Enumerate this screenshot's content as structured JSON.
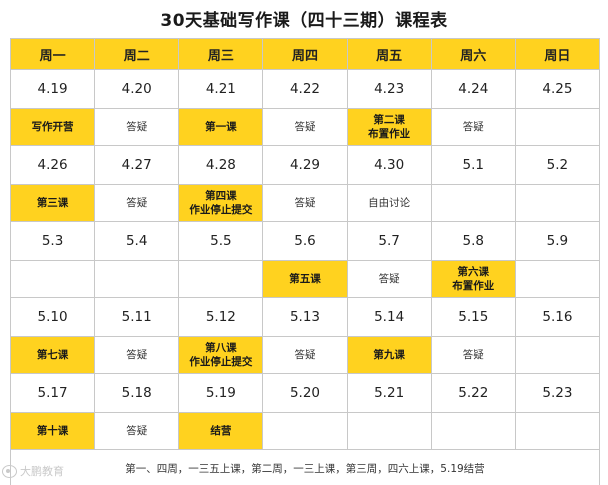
{
  "title": "30天基础写作课（四十三期）课程表",
  "weekdays": [
    "周一",
    "周二",
    "周三",
    "周四",
    "周五",
    "周六",
    "周日"
  ],
  "weeks": [
    {
      "dates": [
        "4.19",
        "4.20",
        "4.21",
        "4.22",
        "4.23",
        "4.24",
        "4.25"
      ],
      "activities": [
        {
          "text": "写作开营",
          "highlight": true
        },
        {
          "text": "答疑",
          "highlight": false
        },
        {
          "text": "第一课",
          "highlight": true
        },
        {
          "text": "答疑",
          "highlight": false
        },
        {
          "text": "第二课\n布置作业",
          "highlight": true
        },
        {
          "text": "答疑",
          "highlight": false
        },
        {
          "text": "",
          "highlight": false
        }
      ]
    },
    {
      "dates": [
        "4.26",
        "4.27",
        "4.28",
        "4.29",
        "4.30",
        "5.1",
        "5.2"
      ],
      "activities": [
        {
          "text": "第三课",
          "highlight": true
        },
        {
          "text": "答疑",
          "highlight": false
        },
        {
          "text": "第四课\n作业停止提交",
          "highlight": true
        },
        {
          "text": "答疑",
          "highlight": false
        },
        {
          "text": "自由讨论",
          "highlight": false
        },
        {
          "text": "",
          "highlight": false
        },
        {
          "text": "",
          "highlight": false
        }
      ]
    },
    {
      "dates": [
        "5.3",
        "5.4",
        "5.5",
        "5.6",
        "5.7",
        "5.8",
        "5.9"
      ],
      "activities": [
        {
          "text": "",
          "highlight": false
        },
        {
          "text": "",
          "highlight": false
        },
        {
          "text": "",
          "highlight": false
        },
        {
          "text": "第五课",
          "highlight": true
        },
        {
          "text": "答疑",
          "highlight": false
        },
        {
          "text": "第六课\n布置作业",
          "highlight": true
        },
        {
          "text": "",
          "highlight": false
        }
      ]
    },
    {
      "dates": [
        "5.10",
        "5.11",
        "5.12",
        "5.13",
        "5.14",
        "5.15",
        "5.16"
      ],
      "activities": [
        {
          "text": "第七课",
          "highlight": true
        },
        {
          "text": "答疑",
          "highlight": false
        },
        {
          "text": "第八课\n作业停止提交",
          "highlight": true
        },
        {
          "text": "答疑",
          "highlight": false
        },
        {
          "text": "第九课",
          "highlight": true
        },
        {
          "text": "答疑",
          "highlight": false
        },
        {
          "text": "",
          "highlight": false
        }
      ]
    },
    {
      "dates": [
        "5.17",
        "5.18",
        "5.19",
        "5.20",
        "5.21",
        "5.22",
        "5.23"
      ],
      "activities": [
        {
          "text": "第十课",
          "highlight": true
        },
        {
          "text": "答疑",
          "highlight": false
        },
        {
          "text": "结营",
          "highlight": true
        },
        {
          "text": "",
          "highlight": false
        },
        {
          "text": "",
          "highlight": false
        },
        {
          "text": "",
          "highlight": false
        },
        {
          "text": "",
          "highlight": false
        }
      ]
    }
  ],
  "footnote": "第一、四周，一三五上课，第二周，一三上课，第三周，四六上课，5.19结营",
  "watermark": "大鹏教育",
  "colors": {
    "highlight": "#FFD21F",
    "border": "#c8c8c8"
  }
}
